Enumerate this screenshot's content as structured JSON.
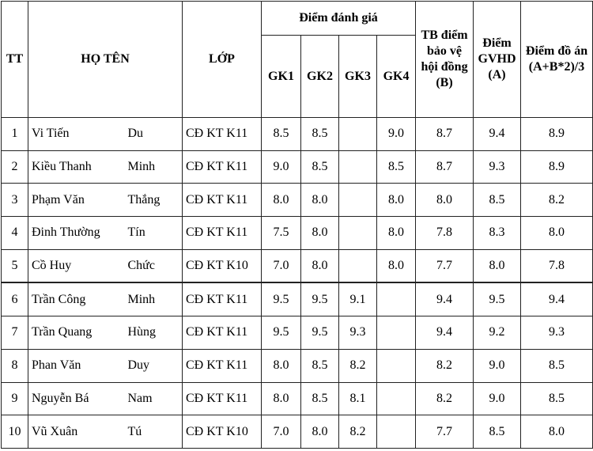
{
  "table": {
    "header": {
      "tt": "TT",
      "name": "HỌ TÊN",
      "class": "LỚP",
      "group": "Điểm đánh giá",
      "gk": [
        "GK1",
        "GK2",
        "GK3",
        "GK4"
      ],
      "tb": "TB điểm bảo vệ hội đồng (B)",
      "gvhd": "Điểm GVHD (A)",
      "final": "Điểm đồ án (A+B*2)/3"
    },
    "rows": [
      [
        "1",
        "Vi Tiến",
        "Du",
        "CĐ KT K11",
        "8.5",
        "8.5",
        null,
        "9.0",
        "8.7",
        "9.4",
        "8.9"
      ],
      [
        "2",
        "Kiều Thanh",
        "Minh",
        "CĐ KT K11",
        "9.0",
        "8.5",
        null,
        "8.5",
        "8.7",
        "9.3",
        "8.9"
      ],
      [
        "3",
        "Phạm Văn",
        "Thắng",
        "CĐ KT K11",
        "8.0",
        "8.0",
        null,
        "8.0",
        "8.0",
        "8.5",
        "8.2"
      ],
      [
        "4",
        "Đinh Thường",
        "Tín",
        "CĐ KT K11",
        "7.5",
        "8.0",
        null,
        "8.0",
        "7.8",
        "8.3",
        "8.0"
      ],
      [
        "5",
        "Cồ Huy",
        "Chức",
        "CĐ KT K10",
        "7.0",
        "8.0",
        null,
        "8.0",
        "7.7",
        "8.0",
        "7.8"
      ],
      [
        "6",
        "Trần Công",
        "Minh",
        "CĐ KT K11",
        "9.5",
        "9.5",
        "9.1",
        null,
        "9.4",
        "9.5",
        "9.4"
      ],
      [
        "7",
        "Trần Quang",
        "Hùng",
        "CĐ KT K11",
        "9.5",
        "9.5",
        "9.3",
        null,
        "9.4",
        "9.2",
        "9.3"
      ],
      [
        "8",
        "Phan Văn",
        "Duy",
        "CĐ KT K11",
        "8.0",
        "8.5",
        "8.2",
        null,
        "8.2",
        "9.0",
        "8.5"
      ],
      [
        "9",
        "Nguyễn Bá",
        "Nam",
        "CĐ KT K11",
        "8.0",
        "8.5",
        "8.1",
        null,
        "8.2",
        "9.0",
        "8.5"
      ],
      [
        "10",
        "Vũ Xuân",
        "Tú",
        "CĐ KT K10",
        "7.0",
        "8.0",
        "8.2",
        null,
        "7.7",
        "8.5",
        "8.0"
      ]
    ]
  }
}
